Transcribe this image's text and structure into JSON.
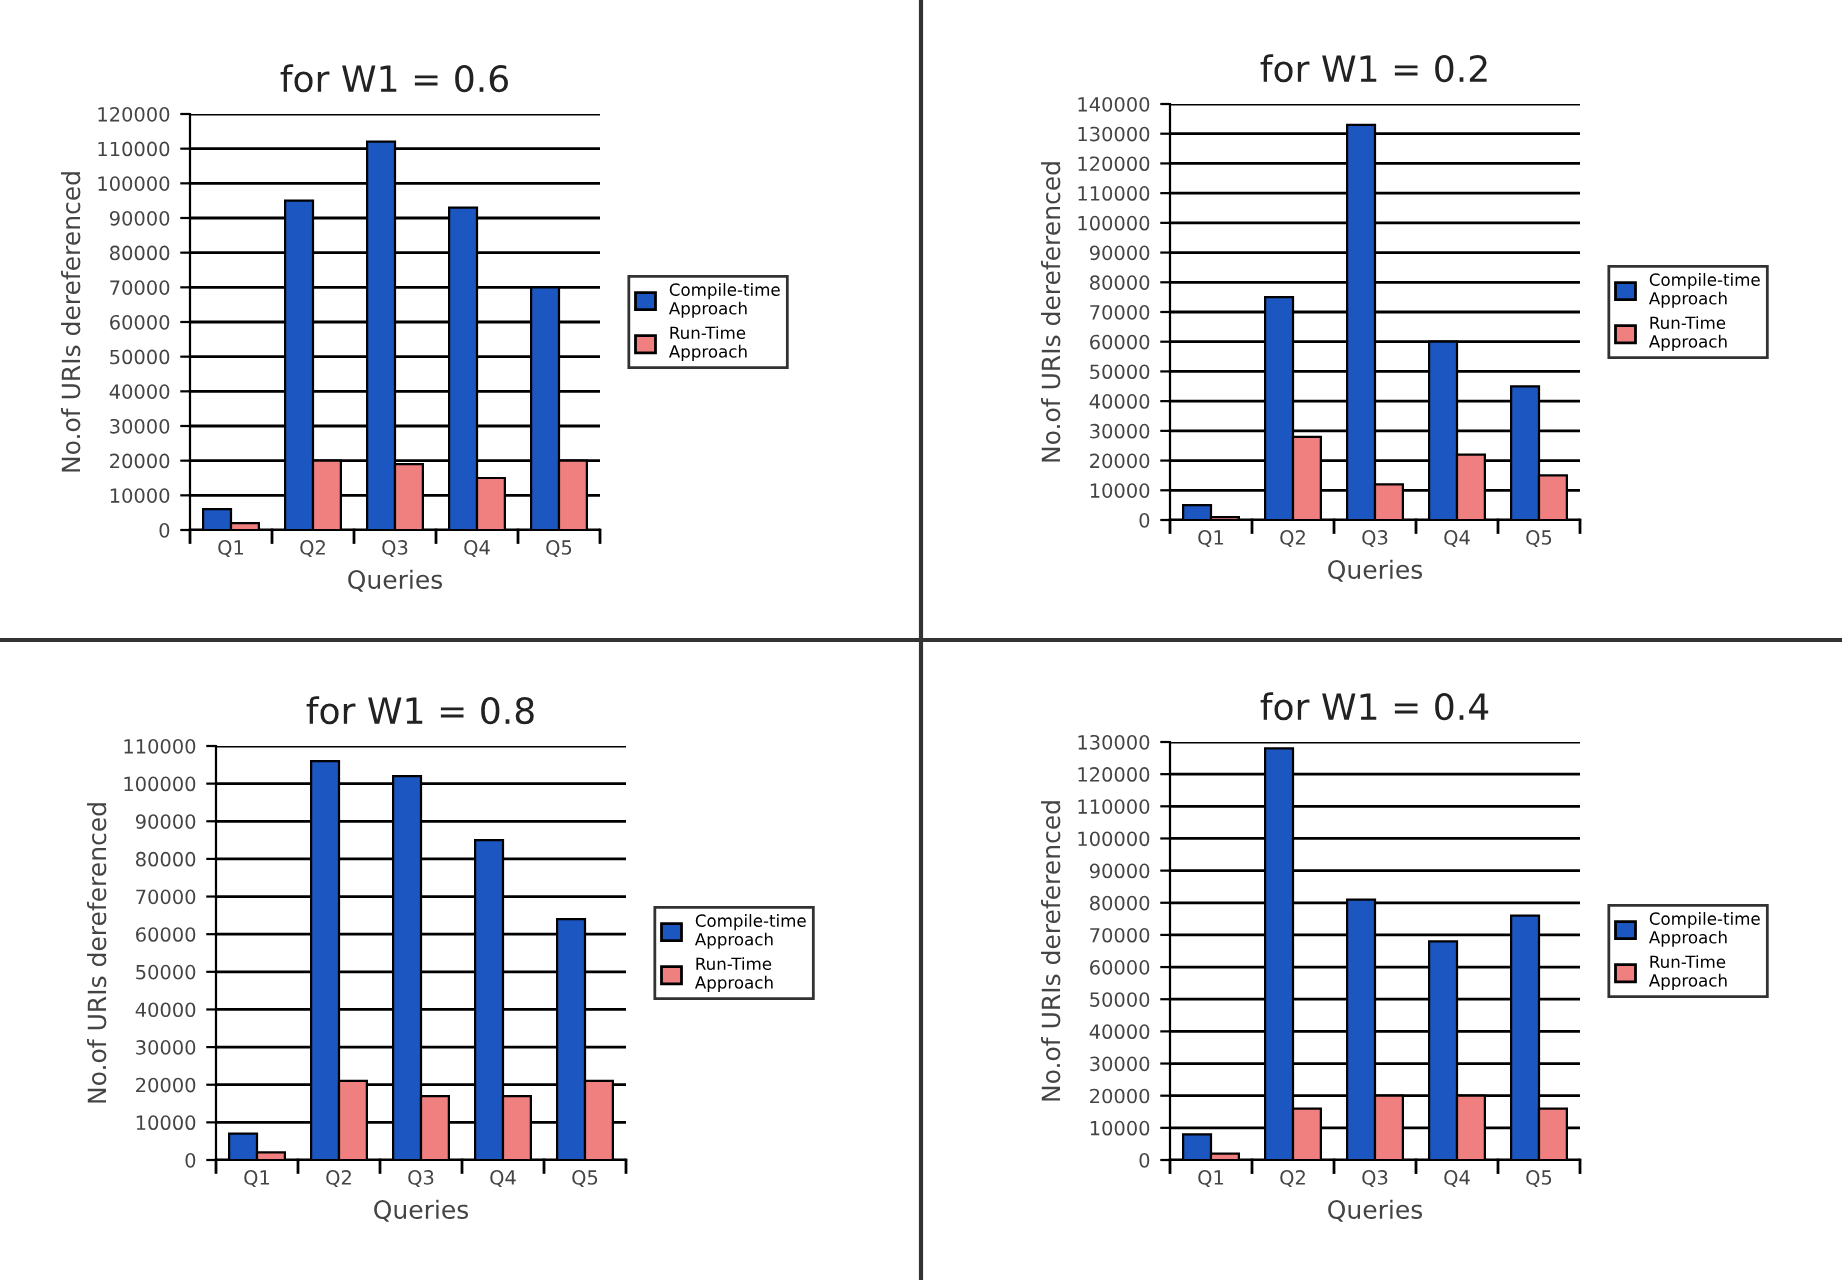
{
  "chart_data": [
    {
      "type": "bar",
      "title": "for W1 = 0.6",
      "xlabel": "Queries",
      "ylabel": "No.of URIs dereferenced",
      "categories": [
        "Q1",
        "Q2",
        "Q3",
        "Q4",
        "Q5"
      ],
      "series": [
        {
          "name": "Compile-time\nApproach",
          "color": "#1c56c0",
          "values": [
            6000,
            95000,
            112000,
            93000,
            70000
          ]
        },
        {
          "name": "Run-Time\nApproach",
          "color": "#f08080",
          "values": [
            2000,
            20000,
            19000,
            15000,
            20000
          ]
        }
      ],
      "ylim": [
        0,
        120000
      ],
      "yticks": [
        0,
        10000,
        20000,
        30000,
        40000,
        50000,
        60000,
        70000,
        80000,
        90000,
        100000,
        110000,
        120000
      ],
      "grid": "y",
      "legend": "right"
    },
    {
      "type": "bar",
      "title": "for W1 = 0.2",
      "xlabel": "Queries",
      "ylabel": "No.of URIs dereferenced",
      "categories": [
        "Q1",
        "Q2",
        "Q3",
        "Q4",
        "Q5"
      ],
      "series": [
        {
          "name": "Compile-time\nApproach",
          "color": "#1c56c0",
          "values": [
            5000,
            75000,
            133000,
            60000,
            45000
          ]
        },
        {
          "name": "Run-Time\nApproach",
          "color": "#f08080",
          "values": [
            1000,
            28000,
            12000,
            22000,
            15000
          ]
        }
      ],
      "ylim": [
        0,
        140000
      ],
      "yticks": [
        0,
        10000,
        20000,
        30000,
        40000,
        50000,
        60000,
        70000,
        80000,
        90000,
        100000,
        110000,
        120000,
        130000,
        140000
      ],
      "grid": "y",
      "legend": "right"
    },
    {
      "type": "bar",
      "title": "for W1 = 0.8",
      "xlabel": "Queries",
      "ylabel": "No.of URIs dereferenced",
      "categories": [
        "Q1",
        "Q2",
        "Q3",
        "Q4",
        "Q5"
      ],
      "series": [
        {
          "name": "Compile-time\nApproach",
          "color": "#1c56c0",
          "values": [
            7000,
            106000,
            102000,
            85000,
            64000
          ]
        },
        {
          "name": "Run-Time\nApproach",
          "color": "#f08080",
          "values": [
            2000,
            21000,
            17000,
            17000,
            21000
          ]
        }
      ],
      "ylim": [
        0,
        110000
      ],
      "yticks": [
        0,
        10000,
        20000,
        30000,
        40000,
        50000,
        60000,
        70000,
        80000,
        90000,
        100000,
        110000
      ],
      "grid": "y",
      "legend": "right"
    },
    {
      "type": "bar",
      "title": "for W1 = 0.4",
      "xlabel": "Queries",
      "ylabel": "No.of URIs dereferenced",
      "categories": [
        "Q1",
        "Q2",
        "Q3",
        "Q4",
        "Q5"
      ],
      "series": [
        {
          "name": "Compile-time\nApproach",
          "color": "#1c56c0",
          "values": [
            8000,
            128000,
            81000,
            68000,
            76000
          ]
        },
        {
          "name": "Run-Time\nApproach",
          "color": "#f08080",
          "values": [
            2000,
            16000,
            20000,
            20000,
            16000
          ]
        }
      ],
      "ylim": [
        0,
        130000
      ],
      "yticks": [
        0,
        10000,
        20000,
        30000,
        40000,
        50000,
        60000,
        70000,
        80000,
        90000,
        100000,
        110000,
        120000,
        130000
      ],
      "grid": "y",
      "legend": "right"
    }
  ]
}
